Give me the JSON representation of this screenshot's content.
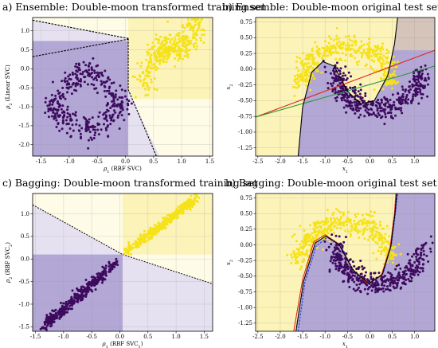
{
  "figure": {
    "panels": [
      {
        "id": "a",
        "title": "a) Ensemble: Double-moon transformed training set",
        "xlabel": "ρ1 (RBF SVC)",
        "ylabel": "ρ2 (Linear SVC)"
      },
      {
        "id": "b1",
        "title": "b) Ensemble: Double-moon original test set",
        "xlabel": "x1",
        "ylabel": "x2"
      },
      {
        "id": "c",
        "title": "c) Bagging: Double-moon transformed training set",
        "xlabel": "ρ1 (RBF SVC1)",
        "ylabel": "ρ2 (RBF SVC2)"
      },
      {
        "id": "b2",
        "title": "b) Bagging: Double-moon original test set",
        "xlabel": "x1",
        "ylabel": "x2"
      }
    ]
  },
  "colors": {
    "class_yellow": "#f5e21a",
    "class_purple": "#3d0a5e",
    "region_yellow": "#fcf3b8",
    "region_purple": "#b3a7d6",
    "pale_yellow": "#fefbe6",
    "pale_purple": "#e6e1f1",
    "boundary_red": "#e0261e",
    "boundary_green": "#2b9a3b",
    "boundary_blue": "#2b3de0",
    "boundary_black": "#000000"
  },
  "chart_data": [
    {
      "type": "scatter",
      "panel": "a",
      "title": "a) Ensemble: Double-moon transformed training set",
      "xlabel": "ρ1 (RBF SVC)",
      "ylabel": "ρ2 (Linear SVC)",
      "xlim": [
        -1.65,
        1.55
      ],
      "ylim": [
        -2.3,
        1.35
      ],
      "xticks": [
        "-1.5",
        "-1.0",
        "-0.5",
        "0.0",
        "0.5",
        "1.0",
        "1.5"
      ],
      "xtick_values": [
        -1.5,
        -1.0,
        -0.5,
        0.0,
        0.5,
        1.0,
        1.5
      ],
      "yticks": [
        "-2.0",
        "-1.5",
        "-1.0",
        "-0.5",
        "0.0",
        "0.5",
        "1.0"
      ],
      "ytick_values": [
        -2.0,
        -1.5,
        -1.0,
        -0.5,
        0.0,
        0.5,
        1.0
      ],
      "grid": true,
      "regions": [
        {
          "color": "pale_yellow",
          "points": [
            [
              -1.65,
              1.35
            ],
            [
              1.55,
              1.35
            ],
            [
              1.55,
              -2.3
            ],
            [
              0.05,
              -2.3
            ],
            [
              0.05,
              0.8
            ],
            [
              -1.65,
              1.28
            ]
          ]
        },
        {
          "color": "region_yellow",
          "points": [
            [
              0.05,
              1.35
            ],
            [
              1.55,
              1.35
            ],
            [
              1.55,
              -0.8
            ],
            [
              0.05,
              -0.8
            ]
          ]
        },
        {
          "color": "pale_purple",
          "points": [
            [
              -1.65,
              1.28
            ],
            [
              0.05,
              0.8
            ],
            [
              0.05,
              0.73
            ],
            [
              -1.65,
              0.32
            ]
          ]
        },
        {
          "color": "pale_purple",
          "points": [
            [
              0.05,
              -0.55
            ],
            [
              0.6,
              -2.3
            ],
            [
              0.05,
              -2.3
            ]
          ]
        },
        {
          "color": "region_purple",
          "points": [
            [
              -1.65,
              0.73
            ],
            [
              0.05,
              0.73
            ],
            [
              0.05,
              -2.3
            ],
            [
              -1.65,
              -2.3
            ]
          ]
        }
      ],
      "boundaries": [
        {
          "color": "boundary_black",
          "dashed": true,
          "points": [
            [
              -1.65,
              1.28
            ],
            [
              0.05,
              0.8
            ]
          ]
        },
        {
          "color": "boundary_black",
          "dashed": true,
          "points": [
            [
              -1.65,
              0.32
            ],
            [
              0.05,
              0.78
            ]
          ]
        },
        {
          "color": "boundary_black",
          "dashed": true,
          "points": [
            [
              0.05,
              0.8
            ],
            [
              0.05,
              -0.55
            ],
            [
              0.55,
              -2.3
            ]
          ]
        }
      ],
      "series": [
        {
          "class": "yellow",
          "color": "class_yellow",
          "generator": "moon_a_yellow"
        },
        {
          "class": "purple",
          "color": "class_purple",
          "generator": "moon_a_purple"
        }
      ]
    },
    {
      "type": "scatter",
      "panel": "b1",
      "title": "b) Ensemble: Double-moon original test set",
      "xlabel": "x1",
      "ylabel": "x2",
      "xlim": [
        -2.55,
        1.45
      ],
      "ylim": [
        -1.38,
        0.82
      ],
      "xticks": [
        "-2.5",
        "-2.0",
        "-1.5",
        "-1.0",
        "-0.5",
        "0.0",
        "0.5",
        "1.0"
      ],
      "xtick_values": [
        -2.5,
        -2.0,
        -1.5,
        -1.0,
        -0.5,
        0.0,
        0.5,
        1.0
      ],
      "yticks": [
        "-1.25",
        "-1.00",
        "-0.75",
        "-0.50",
        "-0.25",
        "0.00",
        "0.25",
        "0.50",
        "0.75"
      ],
      "ytick_values": [
        -1.25,
        -1.0,
        -0.75,
        -0.5,
        -0.25,
        0.0,
        0.25,
        0.5,
        0.75
      ],
      "grid": true,
      "series": [
        {
          "class": "yellow",
          "color": "class_yellow",
          "generator": "moon_upper"
        },
        {
          "class": "purple",
          "color": "class_purple",
          "generator": "moon_lower"
        }
      ],
      "boundaries": [
        {
          "color": "boundary_red",
          "name": "",
          "points": [
            [
              -2.55,
              -0.76
            ],
            [
              1.45,
              0.3
            ]
          ]
        },
        {
          "color": "boundary_green",
          "name": "",
          "points": [
            [
              -2.55,
              -0.76
            ],
            [
              1.45,
              0.05
            ]
          ]
        },
        {
          "color": "boundary_black",
          "points": [
            [
              -1.6,
              -1.38
            ],
            [
              -1.5,
              -0.6
            ],
            [
              -1.3,
              -0.05
            ],
            [
              -1.05,
              0.12
            ],
            [
              -0.8,
              0.05
            ],
            [
              -0.5,
              -0.35
            ],
            [
              -0.2,
              -0.55
            ],
            [
              0.1,
              -0.5
            ],
            [
              0.4,
              -0.1
            ],
            [
              0.55,
              0.4
            ],
            [
              0.62,
              0.82
            ]
          ]
        }
      ]
    },
    {
      "type": "scatter",
      "panel": "c",
      "title": "c) Bagging: Double-moon transformed training set",
      "xlabel": "ρ1 (RBF SVC1)",
      "ylabel": "ρ2 (RBF SVC2)",
      "xlim": [
        -1.55,
        1.65
      ],
      "ylim": [
        -1.6,
        1.45
      ],
      "xticks": [
        "-1.5",
        "-1.0",
        "-0.5",
        "0.0",
        "0.5",
        "1.0",
        "1.5"
      ],
      "xtick_values": [
        -1.5,
        -1.0,
        -0.5,
        0.0,
        0.5,
        1.0,
        1.5
      ],
      "yticks": [
        "-1.5",
        "-1.0",
        "-0.5",
        "0.0",
        "0.5",
        "1.0"
      ],
      "ytick_values": [
        -1.5,
        -1.0,
        -0.5,
        0.0,
        0.5,
        1.0
      ],
      "grid": true,
      "series": [
        {
          "class": "yellow",
          "color": "class_yellow",
          "generator": "diag_yellow"
        },
        {
          "class": "purple",
          "color": "class_purple",
          "generator": "diag_purple"
        }
      ]
    },
    {
      "type": "scatter",
      "panel": "b2",
      "title": "b) Bagging: Double-moon original test set",
      "xlabel": "x1",
      "ylabel": "x2",
      "xlim": [
        -2.55,
        1.45
      ],
      "ylim": [
        -1.38,
        0.82
      ],
      "xticks": [
        "-2.5",
        "-2.0",
        "-1.5",
        "-1.0",
        "-0.5",
        "0.0",
        "0.5",
        "1.0"
      ],
      "xtick_values": [
        -2.5,
        -2.0,
        -1.5,
        -1.0,
        -0.5,
        0.0,
        0.5,
        1.0
      ],
      "yticks": [
        "-1.25",
        "-1.00",
        "-0.75",
        "-0.50",
        "-0.25",
        "0.00",
        "0.25",
        "0.50",
        "0.75"
      ],
      "ytick_values": [
        -1.25,
        -1.0,
        -0.75,
        -0.5,
        -0.25,
        0.0,
        0.25,
        0.5,
        0.75
      ],
      "grid": true,
      "series": [
        {
          "class": "yellow",
          "color": "class_yellow",
          "generator": "moon_upper"
        },
        {
          "class": "purple",
          "color": "class_purple",
          "generator": "moon_lower"
        }
      ],
      "boundaries": [
        {
          "color": "boundary_red",
          "points": [
            [
              -1.7,
              -1.38
            ],
            [
              -1.5,
              -0.55
            ],
            [
              -1.25,
              0.05
            ],
            [
              -1.0,
              0.16
            ],
            [
              -0.7,
              0.02
            ],
            [
              -0.4,
              -0.38
            ],
            [
              -0.05,
              -0.62
            ],
            [
              0.25,
              -0.5
            ],
            [
              0.45,
              -0.05
            ],
            [
              0.55,
              0.5
            ],
            [
              0.58,
              0.82
            ]
          ]
        },
        {
          "color": "boundary_blue",
          "dashed": true,
          "points": [
            [
              -1.6,
              -1.38
            ],
            [
              -1.45,
              -0.6
            ],
            [
              -1.2,
              -0.02
            ],
            [
              -0.95,
              0.12
            ],
            [
              -0.65,
              -0.02
            ],
            [
              -0.35,
              -0.42
            ],
            [
              0.0,
              -0.62
            ],
            [
              0.3,
              -0.45
            ],
            [
              0.48,
              0.0
            ],
            [
              0.57,
              0.5
            ],
            [
              0.62,
              0.82
            ]
          ]
        },
        {
          "color": "boundary_black",
          "points": [
            [
              -1.65,
              -1.38
            ],
            [
              -1.48,
              -0.58
            ],
            [
              -1.22,
              0.03
            ],
            [
              -0.98,
              0.14
            ],
            [
              -0.68,
              0.0
            ],
            [
              -0.38,
              -0.4
            ],
            [
              -0.02,
              -0.62
            ],
            [
              0.28,
              -0.47
            ],
            [
              0.47,
              -0.02
            ],
            [
              0.56,
              0.5
            ],
            [
              0.6,
              0.82
            ]
          ]
        }
      ]
    }
  ]
}
